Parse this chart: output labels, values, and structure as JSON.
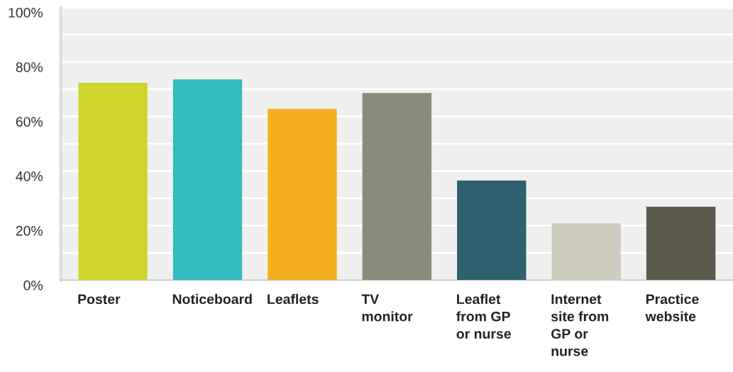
{
  "chart_data": {
    "type": "bar",
    "categories": [
      "Poster",
      "Noticeboard",
      "Leaflets",
      "TV\nmonitor",
      "Leaflet\nfrom GP\nor nurse",
      "Internet\nsite from\nGP or\nnurse",
      "Practice\nwebsite"
    ],
    "values": [
      72.3,
      73.6,
      62.8,
      68.6,
      36.5,
      20.8,
      26.9
    ],
    "colors": [
      "#cfd52a",
      "#34bcbe",
      "#f5ae20",
      "#898a78",
      "#2e606e",
      "#cfcdbd",
      "#5c5a4b"
    ],
    "ylim": [
      0,
      100
    ],
    "yticks": [
      {
        "value": 0,
        "label": "0%"
      },
      {
        "value": 10,
        "label": null
      },
      {
        "value": 20,
        "label": "20%"
      },
      {
        "value": 30,
        "label": null
      },
      {
        "value": 40,
        "label": "40%"
      },
      {
        "value": 50,
        "label": null
      },
      {
        "value": 60,
        "label": "60%"
      },
      {
        "value": 70,
        "label": null
      },
      {
        "value": 80,
        "label": "80%"
      },
      {
        "value": 90,
        "label": null
      },
      {
        "value": 100,
        "label": "100%"
      }
    ],
    "grid": "y"
  }
}
